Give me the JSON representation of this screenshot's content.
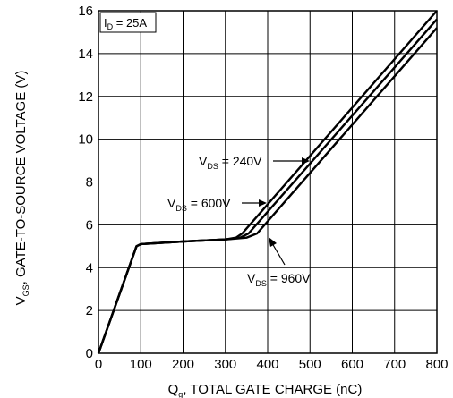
{
  "chart_data": {
    "type": "line",
    "xlabel_main": "Q",
    "xlabel_sub": "g",
    "xlabel_rest": ", TOTAL GATE CHARGE (nC)",
    "ylabel_main": "V",
    "ylabel_sub": "GS",
    "ylabel_rest": ", GATE-TO-SOURCE  VOLTAGE (V)",
    "xlim": [
      0,
      800
    ],
    "ylim": [
      0,
      16
    ],
    "xticks": [
      "0",
      "100",
      "200",
      "300",
      "400",
      "500",
      "600",
      "700",
      "800"
    ],
    "yticks": [
      "0",
      "2",
      "4",
      "6",
      "8",
      "10",
      "12",
      "14",
      "16"
    ],
    "grid": true,
    "condition": {
      "main": "I",
      "sub": "D",
      "rest": " = 25A"
    },
    "series": [
      {
        "name_main": "V",
        "name_sub": "DS",
        "name_rest": " = 240V",
        "x": [
          0,
          90,
          100,
          200,
          300,
          325,
          340,
          800
        ],
        "y": [
          0,
          5.0,
          5.1,
          5.22,
          5.32,
          5.4,
          5.6,
          16.0
        ]
      },
      {
        "name_main": "V",
        "name_sub": "DS",
        "name_rest": " = 600V",
        "x": [
          0,
          90,
          100,
          200,
          300,
          335,
          355,
          800
        ],
        "y": [
          0,
          5.0,
          5.1,
          5.22,
          5.32,
          5.4,
          5.6,
          15.6
        ]
      },
      {
        "name_main": "V",
        "name_sub": "DS",
        "name_rest": " = 960V",
        "x": [
          0,
          90,
          100,
          200,
          300,
          350,
          375,
          800
        ],
        "y": [
          0,
          5.0,
          5.1,
          5.22,
          5.32,
          5.4,
          5.6,
          15.2
        ]
      }
    ]
  }
}
